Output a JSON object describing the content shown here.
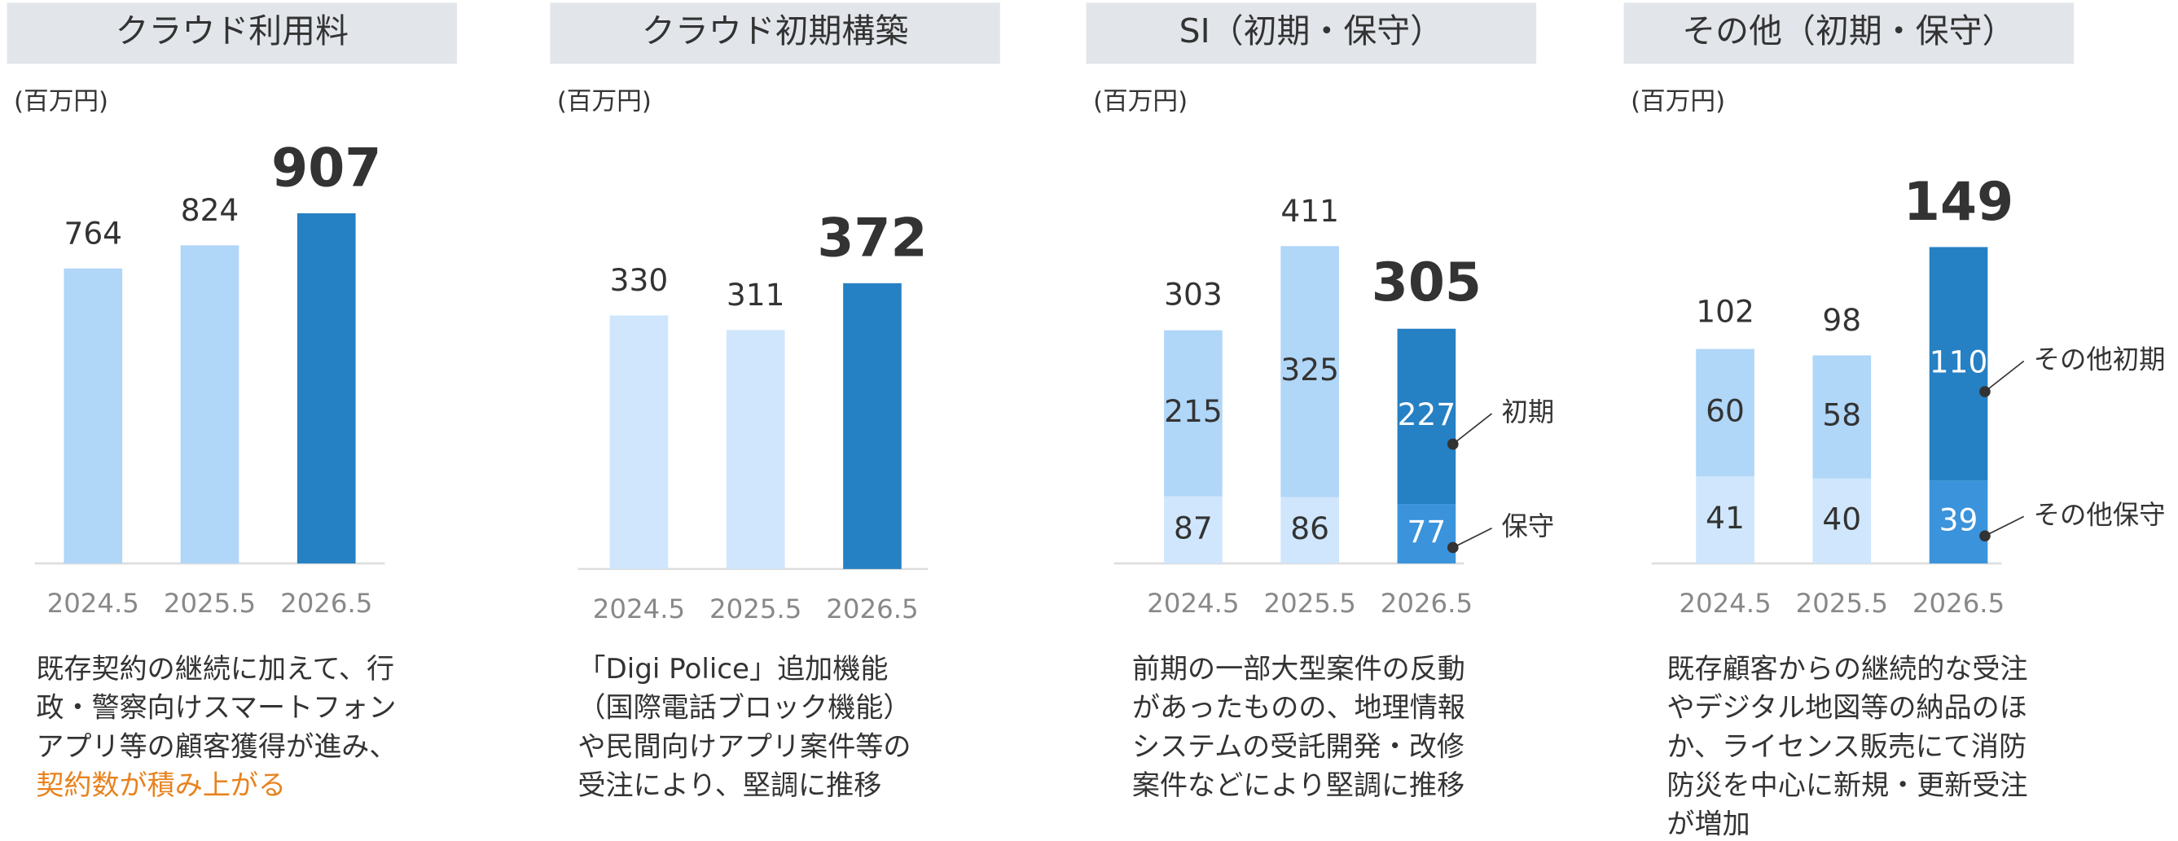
{
  "panels": [
    {
      "title": "クラウド利用料",
      "unit": "(百万円)",
      "chart_data": {
        "type": "bar",
        "categories": [
          "2024.5",
          "2025.5",
          "2026.5"
        ],
        "values": [
          764,
          824,
          907
        ],
        "colors": [
          "#b0d6f8",
          "#b0d6f8",
          "#2680c4"
        ],
        "ylim": [
          0,
          1100
        ]
      },
      "description": [
        "既存契約の継続に加えて、行",
        "政・警察向けスマートフォン",
        "アプリ等の顧客獲得が進み、"
      ],
      "highlight": "契約数が積み上がる"
    },
    {
      "title": "クラウド初期構築",
      "unit": "(百万円)",
      "chart_data": {
        "type": "bar",
        "categories": [
          "2024.5",
          "2025.5",
          "2026.5"
        ],
        "values": [
          330,
          311,
          372
        ],
        "colors": [
          "#cfe6fc",
          "#cfe6fc",
          "#2680c4"
        ],
        "ylim": [
          0,
          560
        ]
      },
      "description": [
        "「Digi Police」追加機能",
        "（国際電話ブロック機能）",
        "や民間向けアプリ案件等の",
        "受注により、堅調に推移"
      ]
    },
    {
      "title": "SI（初期・保守）",
      "unit": "(百万円)",
      "chart_data": {
        "type": "stacked_bar",
        "categories": [
          "2024.5",
          "2025.5",
          "2026.5"
        ],
        "totals": [
          303,
          411,
          305
        ],
        "series": [
          {
            "name": "保守",
            "values": [
              87,
              86,
              77
            ],
            "colors": [
              "#cfe6fc",
              "#cfe6fc",
              "#3a93db"
            ]
          },
          {
            "name": "初期",
            "values": [
              215,
              325,
              227
            ],
            "colors": [
              "#b0d6f8",
              "#b0d6f8",
              "#2680c4"
            ]
          }
        ],
        "ylim": [
          0,
          550
        ]
      },
      "description": [
        "前期の一部大型案件の反動",
        "があったものの、地理情報",
        "システムの受託開発・改修",
        "案件などにより堅調に推移"
      ]
    },
    {
      "title": "その他（初期・保守）",
      "unit": "(百万円)",
      "chart_data": {
        "type": "stacked_bar",
        "categories": [
          "2024.5",
          "2025.5",
          "2026.5"
        ],
        "totals": [
          102,
          98,
          149
        ],
        "series": [
          {
            "name": "その他保守",
            "values": [
              41,
              40,
              39
            ],
            "colors": [
              "#cfe6fc",
              "#cfe6fc",
              "#3a93db"
            ]
          },
          {
            "name": "その他初期",
            "values": [
              60,
              58,
              110
            ],
            "colors": [
              "#b0d6f8",
              "#b0d6f8",
              "#2680c4"
            ]
          }
        ],
        "ylim": [
          0,
          200
        ]
      },
      "description": [
        "既存顧客からの継続的な受注",
        "やデジタル地図等の納品のほ",
        "か、ライセンス販売にて消防",
        "防災を中心に新規・更新受注",
        "が増加"
      ]
    }
  ]
}
